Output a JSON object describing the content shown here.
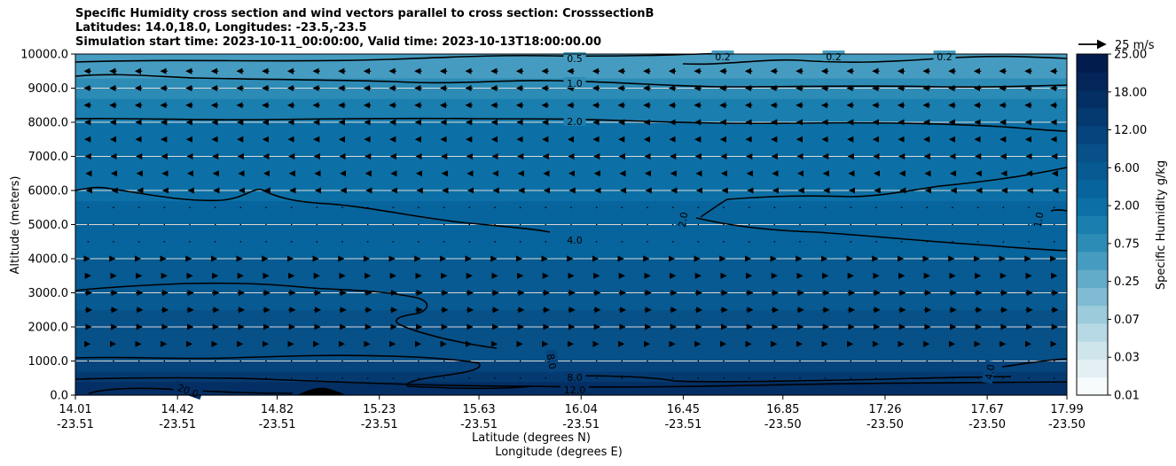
{
  "chart_data": {
    "type": "heatmap",
    "title_lines": [
      "Specific Humidity cross section and wind vectors parallel to cross section: CrosssectionB",
      "Latitudes: 14.0,18.0, Longitudes: -23.5,-23.5",
      "Simulation start time: 2023-10-11_00:00:00, Valid time: 2023-10-13T18:00:00.00"
    ],
    "ylabel": "Altitude (meters)",
    "xlabel_lat": "Latitude (degrees N)",
    "xlabel_lon": "Longitude (degrees E)",
    "ylim": [
      0,
      10000
    ],
    "y_ticks": [
      "0.0",
      "1000.0",
      "2000.0",
      "3000.0",
      "4000.0",
      "5000.0",
      "6000.0",
      "7000.0",
      "8000.0",
      "9000.0",
      "10000.0"
    ],
    "x_ticks": [
      {
        "lat": "14.01",
        "lon": "-23.51"
      },
      {
        "lat": "14.42",
        "lon": "-23.51"
      },
      {
        "lat": "14.82",
        "lon": "-23.51"
      },
      {
        "lat": "15.23",
        "lon": "-23.51"
      },
      {
        "lat": "15.63",
        "lon": "-23.51"
      },
      {
        "lat": "16.04",
        "lon": "-23.51"
      },
      {
        "lat": "16.45",
        "lon": "-23.51"
      },
      {
        "lat": "16.85",
        "lon": "-23.50"
      },
      {
        "lat": "17.26",
        "lon": "-23.50"
      },
      {
        "lat": "17.67",
        "lon": "-23.50"
      },
      {
        "lat": "17.99",
        "lon": "-23.50"
      }
    ],
    "colorbar": {
      "label": "Specific Humidity g/kg",
      "tick_labels": [
        "0.01",
        "0.03",
        "0.07",
        "0.25",
        "0.75",
        "2.00",
        "6.00",
        "12.00",
        "18.00",
        "25.00"
      ]
    },
    "quiver_key": "25 m/s",
    "contour_labels": [
      "0.5",
      "0.2",
      "0.2",
      "0.2",
      "1.0",
      "2.0",
      "2.0",
      "1.0",
      "4.0",
      "8.0",
      "8.0",
      "12.0",
      "4.0",
      "20.0"
    ],
    "humidity_profile": [
      {
        "altitude": 0,
        "value": 18.0
      },
      {
        "altitude": 500,
        "value": 14.0
      },
      {
        "altitude": 1000,
        "value": 9.0
      },
      {
        "altitude": 2000,
        "value": 6.5
      },
      {
        "altitude": 3000,
        "value": 5.5
      },
      {
        "altitude": 4000,
        "value": 4.5
      },
      {
        "altitude": 5000,
        "value": 3.5
      },
      {
        "altitude": 6000,
        "value": 2.8
      },
      {
        "altitude": 7000,
        "value": 2.4
      },
      {
        "altitude": 8000,
        "value": 2.0
      },
      {
        "altitude": 9000,
        "value": 1.0
      },
      {
        "altitude": 10000,
        "value": 0.4
      }
    ],
    "wind_rows": [
      {
        "altitude": 9500,
        "u": -6
      },
      {
        "altitude": 9000,
        "u": -6
      },
      {
        "altitude": 8500,
        "u": -6
      },
      {
        "altitude": 8000,
        "u": -5
      },
      {
        "altitude": 7500,
        "u": -5
      },
      {
        "altitude": 7000,
        "u": -4
      },
      {
        "altitude": 6500,
        "u": -3
      },
      {
        "altitude": 6000,
        "u": -2
      },
      {
        "altitude": 5500,
        "u": -1
      },
      {
        "altitude": 5000,
        "u": 0
      },
      {
        "altitude": 4500,
        "u": 1
      },
      {
        "altitude": 4000,
        "u": 2
      },
      {
        "altitude": 3500,
        "u": 4
      },
      {
        "altitude": 3000,
        "u": 6
      },
      {
        "altitude": 2500,
        "u": 6
      },
      {
        "altitude": 2000,
        "u": 5
      },
      {
        "altitude": 1500,
        "u": 3
      },
      {
        "altitude": 1000,
        "u": 1
      },
      {
        "altitude": 500,
        "u": -1
      }
    ],
    "grid": true
  }
}
